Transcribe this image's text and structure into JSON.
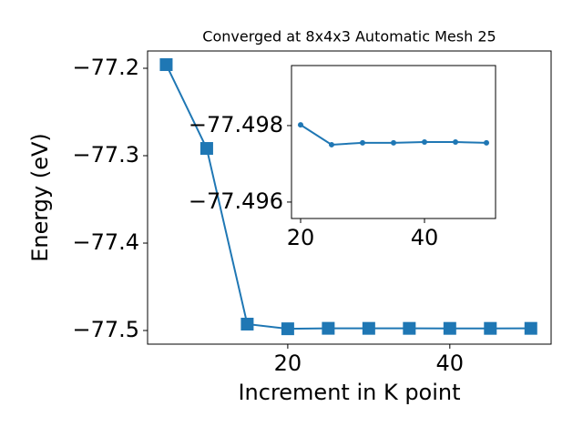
{
  "chart_data": [
    {
      "type": "line",
      "title": "Converged at 8x4x3 Automatic Mesh 25",
      "x_label": "Increment in K point",
      "y_label": "Energy (eV)",
      "marker": "square",
      "x": [
        5,
        10,
        15,
        20,
        25,
        30,
        35,
        40,
        45,
        50
      ],
      "series": [
        {
          "color": "#1f77b4",
          "values": [
            -77.1958,
            -77.2917,
            -77.4927,
            -77.49802,
            -77.4975,
            -77.49755,
            -77.49755,
            -77.49757,
            -77.49757,
            -77.49755
          ]
        }
      ],
      "xlim": [
        2.7,
        52.5
      ],
      "xticks": [
        20,
        40
      ],
      "ylim": [
        -77.5156,
        -77.1802
      ],
      "yticks": [
        {
          "value": -77.5,
          "label": "−77.5"
        },
        {
          "value": -77.4,
          "label": "−77.4"
        },
        {
          "value": -77.3,
          "label": "−77.3"
        },
        {
          "value": -77.2,
          "label": "−77.2"
        }
      ]
    },
    {
      "type": "line",
      "marker": "circle",
      "x": [
        20,
        25,
        30,
        35,
        40,
        45,
        50
      ],
      "series": [
        {
          "color": "#1f77b4",
          "values": [
            -77.49802,
            -77.4975,
            -77.49755,
            -77.49755,
            -77.49757,
            -77.49757,
            -77.49755
          ]
        }
      ],
      "xlim": [
        18.53,
        51.47
      ],
      "xticks": [
        20,
        40
      ],
      "ylim": [
        -77.49557,
        -77.49957
      ],
      "yticks": [
        {
          "value": -77.498,
          "label": "−77.498"
        },
        {
          "value": -77.496,
          "label": "−77.496"
        }
      ]
    }
  ]
}
